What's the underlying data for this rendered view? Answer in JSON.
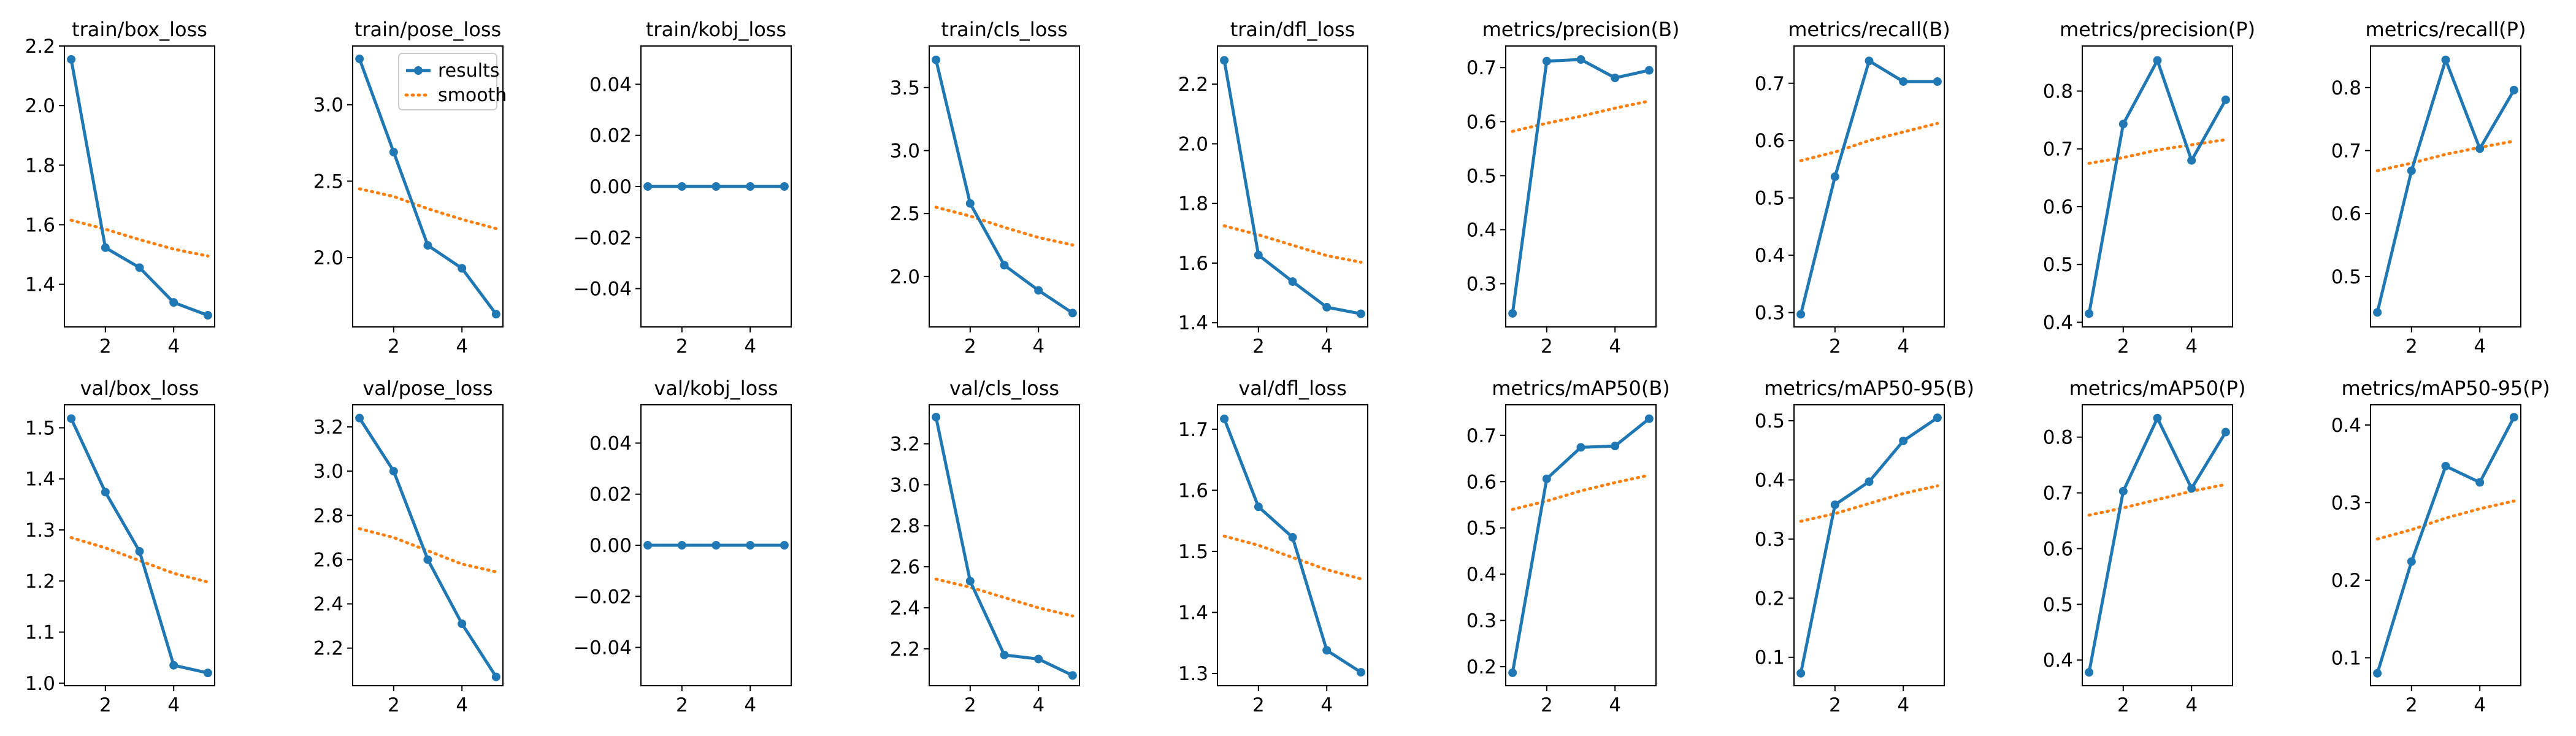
{
  "colors": {
    "results": "#1f77b4",
    "smooth": "#ff7f0e",
    "axes": "#000000",
    "background": "#ffffff"
  },
  "legend": {
    "placement": "top-right",
    "entries": [
      "results",
      "smooth"
    ]
  },
  "chart_data": [
    {
      "type": "line",
      "title": "train/box_loss",
      "x": [
        1,
        2,
        3,
        4,
        5
      ],
      "xticks": [
        2,
        4
      ],
      "xlim": [
        0.8,
        5.2
      ],
      "yticks": [
        1.4,
        1.6,
        1.8,
        2.0,
        2.2
      ],
      "ylim": [
        1.257,
        2.2
      ],
      "series": [
        {
          "name": "results",
          "values": [
            2.155,
            1.523,
            1.456,
            1.339,
            1.296
          ]
        },
        {
          "name": "smooth",
          "values": [
            1.615,
            1.585,
            1.55,
            1.518,
            1.495
          ]
        }
      ]
    },
    {
      "type": "line",
      "title": "train/pose_loss",
      "x": [
        1,
        2,
        3,
        4,
        5
      ],
      "xticks": [
        2,
        4
      ],
      "xlim": [
        0.8,
        5.2
      ],
      "yticks": [
        2.0,
        2.5,
        3.0
      ],
      "ylim": [
        1.547,
        3.384
      ],
      "legend": true,
      "series": [
        {
          "name": "results",
          "values": [
            3.3,
            2.69,
            2.08,
            1.93,
            1.63
          ]
        },
        {
          "name": "smooth",
          "values": [
            2.45,
            2.4,
            2.32,
            2.25,
            2.19
          ]
        }
      ]
    },
    {
      "type": "line",
      "title": "train/kobj_loss",
      "x": [
        1,
        2,
        3,
        4,
        5
      ],
      "xticks": [
        2,
        4
      ],
      "xlim": [
        0.8,
        5.2
      ],
      "yticks": [
        -0.04,
        -0.02,
        0.0,
        0.02,
        0.04
      ],
      "ylim": [
        -0.055,
        0.055
      ],
      "series": [
        {
          "name": "results",
          "values": [
            0,
            0,
            0,
            0,
            0
          ]
        },
        {
          "name": "smooth",
          "values": [
            0,
            0,
            0,
            0,
            0
          ]
        }
      ]
    },
    {
      "type": "line",
      "title": "train/cls_loss",
      "x": [
        1,
        2,
        3,
        4,
        5
      ],
      "xticks": [
        2,
        4
      ],
      "xlim": [
        0.8,
        5.2
      ],
      "yticks": [
        2.0,
        2.5,
        3.0,
        3.5
      ],
      "ylim": [
        1.6,
        3.83
      ],
      "series": [
        {
          "name": "results",
          "values": [
            3.72,
            2.58,
            2.09,
            1.89,
            1.71
          ]
        },
        {
          "name": "smooth",
          "values": [
            2.55,
            2.48,
            2.39,
            2.31,
            2.25
          ]
        }
      ]
    },
    {
      "type": "line",
      "title": "train/dfl_loss",
      "x": [
        1,
        2,
        3,
        4,
        5
      ],
      "xticks": [
        2,
        4
      ],
      "xlim": [
        0.8,
        5.2
      ],
      "yticks": [
        1.4,
        1.6,
        1.8,
        2.0,
        2.2
      ],
      "ylim": [
        1.386,
        2.328
      ],
      "series": [
        {
          "name": "results",
          "values": [
            2.28,
            1.627,
            1.538,
            1.452,
            1.43
          ]
        },
        {
          "name": "smooth",
          "values": [
            1.725,
            1.695,
            1.66,
            1.625,
            1.603
          ]
        }
      ]
    },
    {
      "type": "line",
      "title": "metrics/precision(B)",
      "x": [
        1,
        2,
        3,
        4,
        5
      ],
      "xticks": [
        2,
        4
      ],
      "xlim": [
        0.8,
        5.2
      ],
      "yticks": [
        0.3,
        0.4,
        0.5,
        0.6,
        0.7
      ],
      "ylim": [
        0.22,
        0.74
      ],
      "series": [
        {
          "name": "results",
          "values": [
            0.245,
            0.712,
            0.715,
            0.681,
            0.695
          ]
        },
        {
          "name": "smooth",
          "values": [
            0.582,
            0.597,
            0.61,
            0.625,
            0.638
          ]
        }
      ]
    },
    {
      "type": "line",
      "title": "metrics/recall(B)",
      "x": [
        1,
        2,
        3,
        4,
        5
      ],
      "xticks": [
        2,
        4
      ],
      "xlim": [
        0.8,
        5.2
      ],
      "yticks": [
        0.3,
        0.4,
        0.5,
        0.6,
        0.7
      ],
      "ylim": [
        0.275,
        0.765
      ],
      "series": [
        {
          "name": "results",
          "values": [
            0.297,
            0.537,
            0.739,
            0.703,
            0.703
          ]
        },
        {
          "name": "smooth",
          "values": [
            0.565,
            0.58,
            0.6,
            0.615,
            0.63
          ]
        }
      ]
    },
    {
      "type": "line",
      "title": "metrics/precision(P)",
      "x": [
        1,
        2,
        3,
        4,
        5
      ],
      "xticks": [
        2,
        4
      ],
      "xlim": [
        0.8,
        5.2
      ],
      "yticks": [
        0.4,
        0.5,
        0.6,
        0.7,
        0.8
      ],
      "ylim": [
        0.392,
        0.878
      ],
      "series": [
        {
          "name": "results",
          "values": [
            0.415,
            0.743,
            0.853,
            0.68,
            0.785
          ]
        },
        {
          "name": "smooth",
          "values": [
            0.675,
            0.685,
            0.698,
            0.707,
            0.716
          ]
        }
      ]
    },
    {
      "type": "line",
      "title": "metrics/recall(P)",
      "x": [
        1,
        2,
        3,
        4,
        5
      ],
      "xticks": [
        2,
        4
      ],
      "xlim": [
        0.8,
        5.2
      ],
      "yticks": [
        0.5,
        0.6,
        0.7,
        0.8
      ],
      "ylim": [
        0.42,
        0.866
      ],
      "series": [
        {
          "name": "results",
          "values": [
            0.443,
            0.668,
            0.844,
            0.703,
            0.796
          ]
        },
        {
          "name": "smooth",
          "values": [
            0.668,
            0.68,
            0.694,
            0.705,
            0.715
          ]
        }
      ]
    },
    {
      "type": "line",
      "title": "val/box_loss",
      "x": [
        1,
        2,
        3,
        4,
        5
      ],
      "xticks": [
        2,
        4
      ],
      "xlim": [
        0.8,
        5.2
      ],
      "yticks": [
        1.0,
        1.1,
        1.2,
        1.3,
        1.4,
        1.5
      ],
      "ylim": [
        0.995,
        1.545
      ],
      "series": [
        {
          "name": "results",
          "values": [
            1.518,
            1.374,
            1.258,
            1.035,
            1.02
          ]
        },
        {
          "name": "smooth",
          "values": [
            1.285,
            1.265,
            1.24,
            1.215,
            1.198
          ]
        }
      ]
    },
    {
      "type": "line",
      "title": "val/pose_loss",
      "x": [
        1,
        2,
        3,
        4,
        5
      ],
      "xticks": [
        2,
        4
      ],
      "xlim": [
        0.8,
        5.2
      ],
      "yticks": [
        2.2,
        2.4,
        2.6,
        2.8,
        3.0,
        3.2
      ],
      "ylim": [
        2.03,
        3.3
      ],
      "series": [
        {
          "name": "results",
          "values": [
            3.24,
            3.0,
            2.6,
            2.31,
            2.07
          ]
        },
        {
          "name": "smooth",
          "values": [
            2.74,
            2.7,
            2.64,
            2.58,
            2.545
          ]
        }
      ]
    },
    {
      "type": "line",
      "title": "val/kobj_loss",
      "x": [
        1,
        2,
        3,
        4,
        5
      ],
      "xticks": [
        2,
        4
      ],
      "xlim": [
        0.8,
        5.2
      ],
      "yticks": [
        -0.04,
        -0.02,
        0.0,
        0.02,
        0.04
      ],
      "ylim": [
        -0.055,
        0.055
      ],
      "series": [
        {
          "name": "results",
          "values": [
            0,
            0,
            0,
            0,
            0
          ]
        },
        {
          "name": "smooth",
          "values": [
            0,
            0,
            0,
            0,
            0
          ]
        }
      ]
    },
    {
      "type": "line",
      "title": "val/cls_loss",
      "x": [
        1,
        2,
        3,
        4,
        5
      ],
      "xticks": [
        2,
        4
      ],
      "xlim": [
        0.8,
        5.2
      ],
      "yticks": [
        2.2,
        2.4,
        2.6,
        2.8,
        3.0,
        3.2
      ],
      "ylim": [
        2.02,
        3.39
      ],
      "series": [
        {
          "name": "results",
          "values": [
            3.33,
            2.53,
            2.17,
            2.15,
            2.07
          ]
        },
        {
          "name": "smooth",
          "values": [
            2.54,
            2.5,
            2.45,
            2.4,
            2.36
          ]
        }
      ]
    },
    {
      "type": "line",
      "title": "val/dfl_loss",
      "x": [
        1,
        2,
        3,
        4,
        5
      ],
      "xticks": [
        2,
        4
      ],
      "xlim": [
        0.8,
        5.2
      ],
      "yticks": [
        1.3,
        1.4,
        1.5,
        1.6,
        1.7
      ],
      "ylim": [
        1.28,
        1.74
      ],
      "series": [
        {
          "name": "results",
          "values": [
            1.717,
            1.573,
            1.523,
            1.338,
            1.302
          ]
        },
        {
          "name": "smooth",
          "values": [
            1.525,
            1.51,
            1.49,
            1.47,
            1.455
          ]
        }
      ]
    },
    {
      "type": "line",
      "title": "metrics/mAP50(B)",
      "x": [
        1,
        2,
        3,
        4,
        5
      ],
      "xticks": [
        2,
        4
      ],
      "xlim": [
        0.8,
        5.2
      ],
      "yticks": [
        0.2,
        0.3,
        0.4,
        0.5,
        0.6,
        0.7
      ],
      "ylim": [
        0.159,
        0.766
      ],
      "series": [
        {
          "name": "results",
          "values": [
            0.187,
            0.606,
            0.674,
            0.677,
            0.736
          ]
        },
        {
          "name": "smooth",
          "values": [
            0.54,
            0.558,
            0.58,
            0.598,
            0.614
          ]
        }
      ]
    },
    {
      "type": "line",
      "title": "metrics/mAP50-95(B)",
      "x": [
        1,
        2,
        3,
        4,
        5
      ],
      "xticks": [
        2,
        4
      ],
      "xlim": [
        0.8,
        5.2
      ],
      "yticks": [
        0.1,
        0.2,
        0.3,
        0.4,
        0.5
      ],
      "ylim": [
        0.052,
        0.527
      ],
      "series": [
        {
          "name": "results",
          "values": [
            0.073,
            0.358,
            0.397,
            0.466,
            0.505
          ]
        },
        {
          "name": "smooth",
          "values": [
            0.33,
            0.343,
            0.36,
            0.377,
            0.39
          ]
        }
      ]
    },
    {
      "type": "line",
      "title": "metrics/mAP50(P)",
      "x": [
        1,
        2,
        3,
        4,
        5
      ],
      "xticks": [
        2,
        4
      ],
      "xlim": [
        0.8,
        5.2
      ],
      "yticks": [
        0.4,
        0.5,
        0.6,
        0.7,
        0.8
      ],
      "ylim": [
        0.354,
        0.858
      ],
      "series": [
        {
          "name": "results",
          "values": [
            0.378,
            0.703,
            0.834,
            0.708,
            0.809
          ]
        },
        {
          "name": "smooth",
          "values": [
            0.66,
            0.673,
            0.688,
            0.703,
            0.715
          ]
        }
      ]
    },
    {
      "type": "line",
      "title": "metrics/mAP50-95(P)",
      "x": [
        1,
        2,
        3,
        4,
        5
      ],
      "xticks": [
        2,
        4
      ],
      "xlim": [
        0.8,
        5.2
      ],
      "yticks": [
        0.1,
        0.2,
        0.3,
        0.4
      ],
      "ylim": [
        0.064,
        0.426
      ],
      "series": [
        {
          "name": "results",
          "values": [
            0.08,
            0.224,
            0.347,
            0.326,
            0.41
          ]
        },
        {
          "name": "smooth",
          "values": [
            0.253,
            0.265,
            0.28,
            0.292,
            0.302
          ]
        }
      ]
    }
  ]
}
